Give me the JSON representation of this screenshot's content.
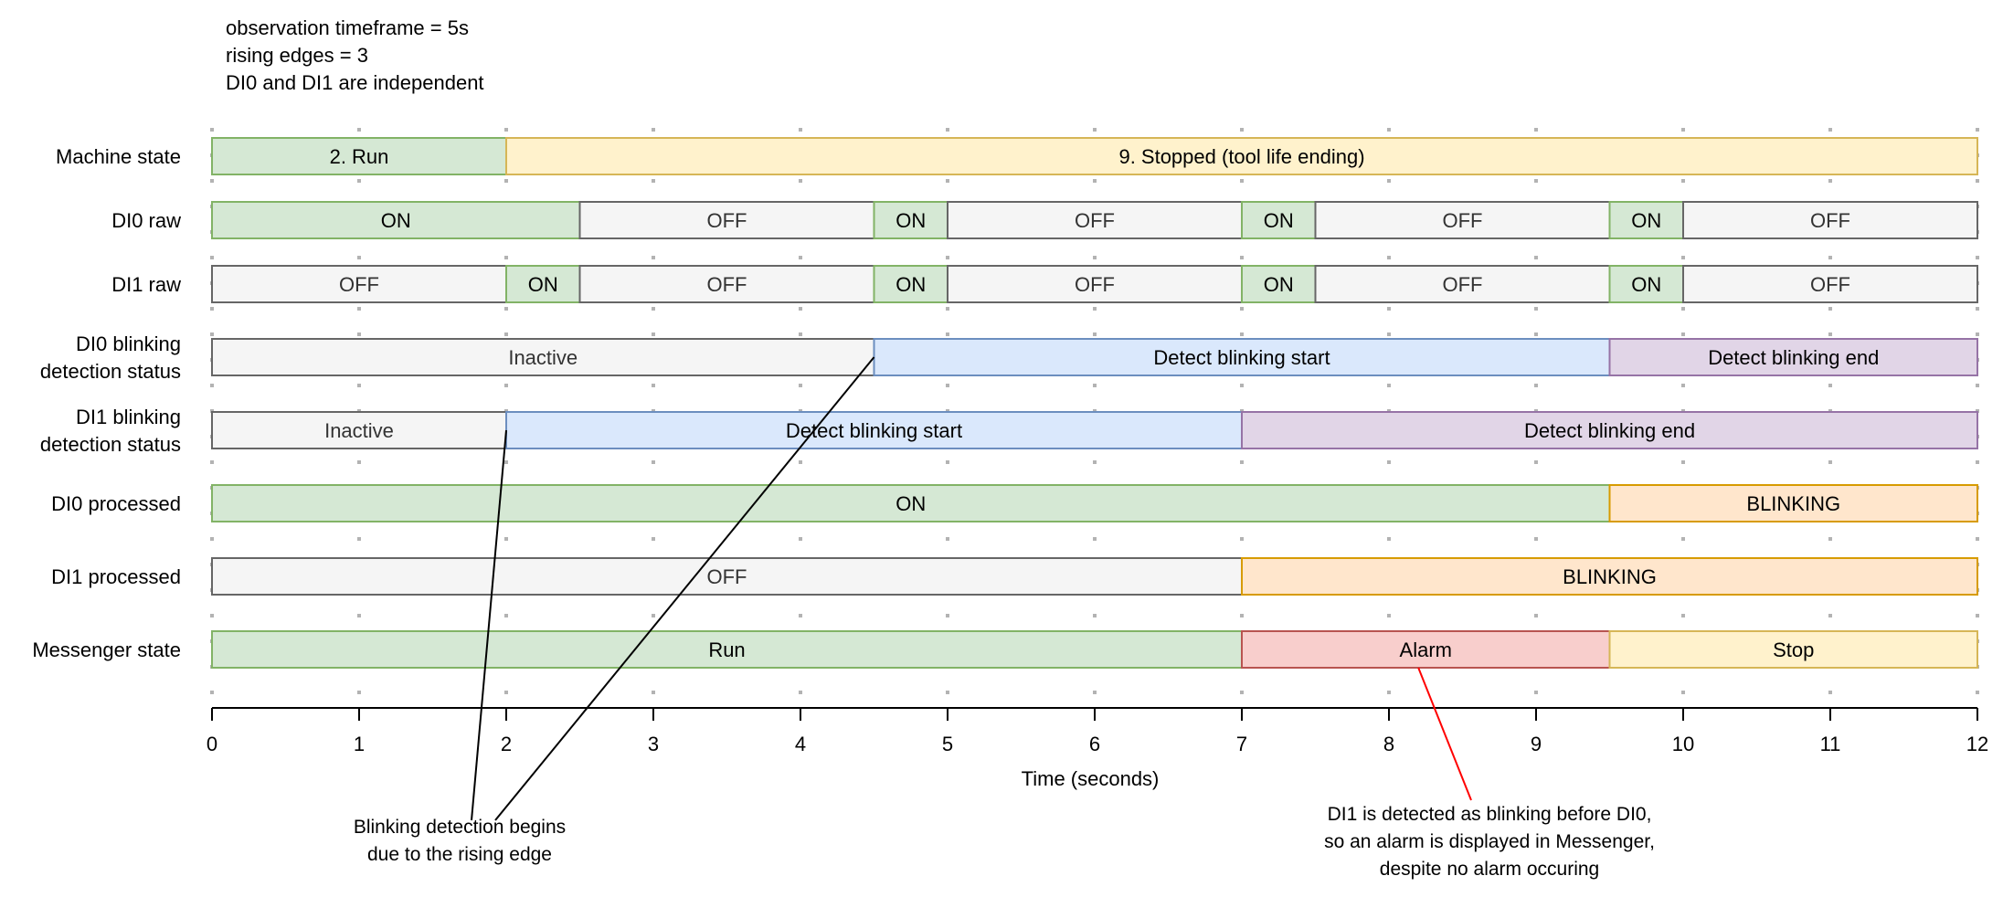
{
  "header_notes": [
    "observation timeframe =  5s",
    "rising edges = 3",
    "DI0 and DI1 are independent"
  ],
  "x_axis": {
    "label": "Time (seconds)",
    "min": 0,
    "max": 12,
    "ticks": [
      0,
      1,
      2,
      3,
      4,
      5,
      6,
      7,
      8,
      9,
      10,
      11,
      12
    ]
  },
  "styles": {
    "green": {
      "fill": "#d5e8d4",
      "stroke": "#82b366",
      "text": "#000000"
    },
    "yellow": {
      "fill": "#fff2cc",
      "stroke": "#d6b656",
      "text": "#000000"
    },
    "gray": {
      "fill": "#f5f5f5",
      "stroke": "#666666",
      "text": "#333333"
    },
    "blue": {
      "fill": "#dae8fc",
      "stroke": "#6c8ebf",
      "text": "#000000"
    },
    "purple": {
      "fill": "#e1d5e7",
      "stroke": "#9673a6",
      "text": "#000000"
    },
    "orange": {
      "fill": "#ffe6cc",
      "stroke": "#d79b00",
      "text": "#000000"
    },
    "red": {
      "fill": "#f8cecc",
      "stroke": "#b85450",
      "text": "#000000"
    }
  },
  "rows": [
    {
      "label": [
        "Machine state"
      ],
      "segments": [
        {
          "start": 0,
          "end": 2,
          "text": "2. Run",
          "style": "green"
        },
        {
          "start": 2,
          "end": 12,
          "text": "9. Stopped (tool life ending)",
          "style": "yellow"
        }
      ]
    },
    {
      "label": [
        "DI0 raw"
      ],
      "segments": [
        {
          "start": 0,
          "end": 2.5,
          "text": "ON",
          "style": "green"
        },
        {
          "start": 2.5,
          "end": 4.5,
          "text": "OFF",
          "style": "gray"
        },
        {
          "start": 4.5,
          "end": 5,
          "text": "ON",
          "style": "green"
        },
        {
          "start": 5,
          "end": 7,
          "text": "OFF",
          "style": "gray"
        },
        {
          "start": 7,
          "end": 7.5,
          "text": "ON",
          "style": "green"
        },
        {
          "start": 7.5,
          "end": 9.5,
          "text": "OFF",
          "style": "gray"
        },
        {
          "start": 9.5,
          "end": 10,
          "text": "ON",
          "style": "green"
        },
        {
          "start": 10,
          "end": 12,
          "text": "OFF",
          "style": "gray"
        }
      ]
    },
    {
      "label": [
        "DI1 raw"
      ],
      "segments": [
        {
          "start": 0,
          "end": 2,
          "text": "OFF",
          "style": "gray"
        },
        {
          "start": 2,
          "end": 2.5,
          "text": "ON",
          "style": "green"
        },
        {
          "start": 2.5,
          "end": 4.5,
          "text": "OFF",
          "style": "gray"
        },
        {
          "start": 4.5,
          "end": 5,
          "text": "ON",
          "style": "green"
        },
        {
          "start": 5,
          "end": 7,
          "text": "OFF",
          "style": "gray"
        },
        {
          "start": 7,
          "end": 7.5,
          "text": "ON",
          "style": "green"
        },
        {
          "start": 7.5,
          "end": 9.5,
          "text": "OFF",
          "style": "gray"
        },
        {
          "start": 9.5,
          "end": 10,
          "text": "ON",
          "style": "green"
        },
        {
          "start": 10,
          "end": 12,
          "text": "OFF",
          "style": "gray"
        }
      ]
    },
    {
      "label": [
        "DI0 blinking",
        "detection status"
      ],
      "segments": [
        {
          "start": 0,
          "end": 4.5,
          "text": "Inactive",
          "style": "gray"
        },
        {
          "start": 4.5,
          "end": 9.5,
          "text": "Detect blinking start",
          "style": "blue"
        },
        {
          "start": 9.5,
          "end": 12,
          "text": "Detect blinking end",
          "style": "purple"
        }
      ]
    },
    {
      "label": [
        "DI1 blinking",
        "detection status"
      ],
      "segments": [
        {
          "start": 0,
          "end": 2,
          "text": "Inactive",
          "style": "gray"
        },
        {
          "start": 2,
          "end": 7,
          "text": "Detect blinking start",
          "style": "blue"
        },
        {
          "start": 7,
          "end": 12,
          "text": "Detect blinking end",
          "style": "purple"
        }
      ]
    },
    {
      "label": [
        "DI0 processed"
      ],
      "segments": [
        {
          "start": 0,
          "end": 9.5,
          "text": "ON",
          "style": "green"
        },
        {
          "start": 9.5,
          "end": 12,
          "text": "BLINKING",
          "style": "orange"
        }
      ]
    },
    {
      "label": [
        "DI1 processed"
      ],
      "segments": [
        {
          "start": 0,
          "end": 7,
          "text": "OFF",
          "style": "gray"
        },
        {
          "start": 7,
          "end": 12,
          "text": "BLINKING",
          "style": "orange"
        }
      ]
    },
    {
      "label": [
        "Messenger state"
      ],
      "segments": [
        {
          "start": 0,
          "end": 7,
          "text": "Run",
          "style": "green"
        },
        {
          "start": 7,
          "end": 9.5,
          "text": "Alarm",
          "style": "red"
        },
        {
          "start": 9.5,
          "end": 12,
          "text": "Stop",
          "style": "yellow"
        }
      ]
    }
  ],
  "annotations": [
    {
      "lines": [
        "Blinking detection begins",
        "due to the rising edge"
      ],
      "color": "#000000",
      "pointer_times": [
        2,
        4.5
      ]
    },
    {
      "lines": [
        "DI1 is detected as blinking before DI0,",
        "so an alarm is displayed in Messenger,",
        "despite no alarm occuring"
      ],
      "color": "#ff0000",
      "pointer_times": [
        8.2
      ]
    }
  ]
}
